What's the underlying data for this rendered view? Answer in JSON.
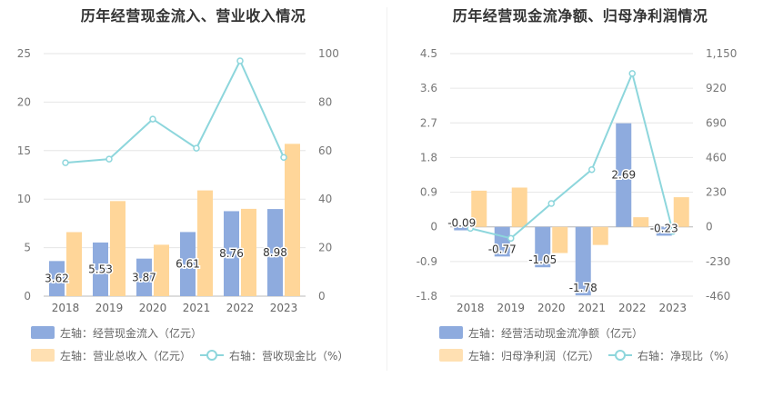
{
  "panels": [
    {
      "title": "历年经营现金流入、营业收入情况",
      "legend": [
        {
          "label": "左轴：经营现金流入（亿元）",
          "kind": "bar",
          "color": "#8eabde"
        },
        {
          "label": "左轴：营业总收入（亿元）",
          "kind": "bar",
          "color": "#ffe0b2"
        },
        {
          "label": "右轴：营收现金比（%）",
          "kind": "line",
          "color": "#8dd6dc"
        }
      ]
    },
    {
      "title": "历年经营现金流净额、归母净利润情况",
      "legend": [
        {
          "label": "左轴：经营活动现金流净额（亿元）",
          "kind": "bar",
          "color": "#8eabde"
        },
        {
          "label": "左轴：归母净利润（亿元）",
          "kind": "bar",
          "color": "#ffe0b2"
        },
        {
          "label": "右轴：净现比（%）",
          "kind": "line",
          "color": "#8dd6dc"
        }
      ]
    }
  ],
  "chart_data": [
    {
      "type": "bar",
      "title": "历年经营现金流入、营业收入情况",
      "categories": [
        "2018",
        "2019",
        "2020",
        "2021",
        "2022",
        "2023"
      ],
      "left_axis": {
        "min": 0,
        "max": 25,
        "ticks": [
          "0",
          "5",
          "10",
          "15",
          "20",
          "25"
        ]
      },
      "right_axis": {
        "min": 0,
        "max": 100,
        "ticks": [
          "0",
          "20",
          "40",
          "60",
          "80",
          "100"
        ]
      },
      "grid": true,
      "series": [
        {
          "name": "左轴：经营现金流入（亿元）",
          "type": "bar",
          "axis": "left",
          "color": "#8eabde",
          "values": [
            3.62,
            5.53,
            3.87,
            6.61,
            8.76,
            8.98
          ],
          "labels": [
            "3.62",
            "5.53",
            "3.87",
            "6.61",
            "8.76",
            "8.98"
          ]
        },
        {
          "name": "左轴：营业总收入（亿元）",
          "type": "bar",
          "axis": "left",
          "color": "#ffd699",
          "values": [
            6.6,
            9.8,
            5.3,
            10.9,
            9.0,
            15.7
          ]
        },
        {
          "name": "右轴：营收现金比（%）",
          "type": "line",
          "axis": "right",
          "color": "#8dd6dc",
          "values": [
            55,
            56.5,
            73,
            61,
            97,
            57.2
          ]
        }
      ]
    },
    {
      "type": "bar",
      "title": "历年经营现金流净额、归母净利润情况",
      "categories": [
        "2018",
        "2019",
        "2020",
        "2021",
        "2022",
        "2023"
      ],
      "left_axis": {
        "min": -1.8,
        "max": 4.5,
        "ticks": [
          "-1.8",
          "-0.9",
          "0",
          "0.9",
          "1.8",
          "2.7",
          "3.6",
          "4.5"
        ]
      },
      "right_axis": {
        "min": -460,
        "max": 1150,
        "ticks": [
          "-460",
          "-230",
          "0",
          "230",
          "460",
          "690",
          "920",
          "1,150"
        ]
      },
      "grid": true,
      "series": [
        {
          "name": "左轴：经营活动现金流净额（亿元）",
          "type": "bar",
          "axis": "left",
          "color": "#8eabde",
          "values": [
            -0.09,
            -0.77,
            -1.05,
            -1.78,
            2.69,
            -0.23
          ],
          "labels": [
            "-0.09",
            "-0.77",
            "-1.05",
            "-1.78",
            "2.69",
            "-0.23"
          ]
        },
        {
          "name": "左轴：归母净利润（亿元）",
          "type": "bar",
          "axis": "left",
          "color": "#ffd699",
          "values": [
            0.94,
            1.02,
            -0.68,
            -0.47,
            0.25,
            0.77
          ]
        },
        {
          "name": "右轴：净现比（%）",
          "type": "line",
          "axis": "right",
          "color": "#8dd6dc",
          "values": [
            -10,
            -76,
            155,
            380,
            1018,
            -30
          ]
        }
      ]
    }
  ]
}
